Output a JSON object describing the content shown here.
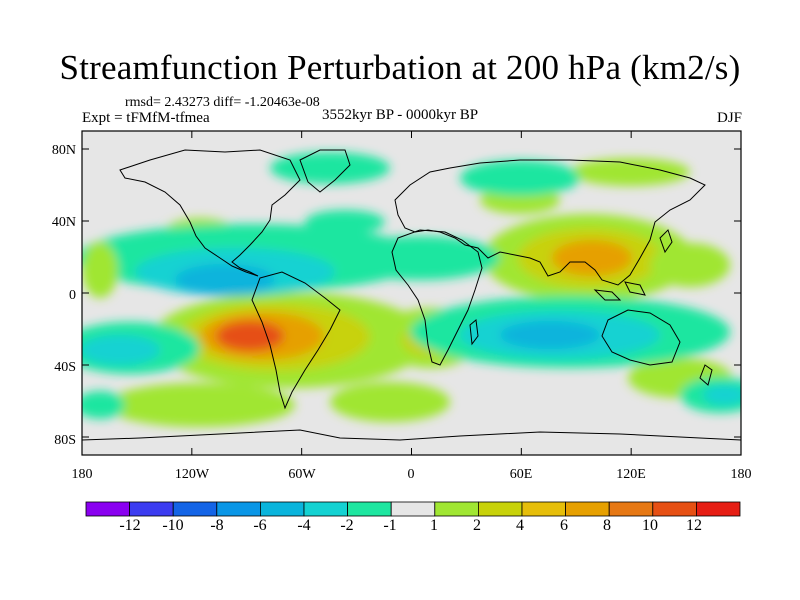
{
  "title": "Streamfunction Perturbation at 200 hPa (km2/s)",
  "stats": "rmsd= 2.43273 diff= -1.20463e-08",
  "expt": "Expt = tFMfM-tfmea",
  "period": "3552kyr BP - 0000kyr BP",
  "season": "DJF",
  "map": {
    "lat_ticks": [
      "80N",
      "40N",
      "0",
      "40S",
      "80S"
    ],
    "lon_ticks": [
      "180",
      "120W",
      "60W",
      "0",
      "60E",
      "120E",
      "180"
    ],
    "lat_values": [
      80,
      40,
      0,
      -40,
      -80
    ],
    "lon_values": [
      -180,
      -120,
      -60,
      0,
      60,
      120,
      180
    ]
  },
  "colorbar": {
    "colors": [
      "#8a00f0",
      "#3c3cf0",
      "#1464e6",
      "#0a96e6",
      "#0ab4dc",
      "#14d2d2",
      "#1ee6a0",
      "#e6e6e6",
      "#a0e632",
      "#c8d20a",
      "#e6be0a",
      "#e6a000",
      "#e67814",
      "#e65014",
      "#e61e14"
    ],
    "labels": [
      "-12",
      "-10",
      "-8",
      "-6",
      "-4",
      "-2",
      "-1",
      "1",
      "2",
      "4",
      "6",
      "8",
      "10",
      "12"
    ]
  }
}
